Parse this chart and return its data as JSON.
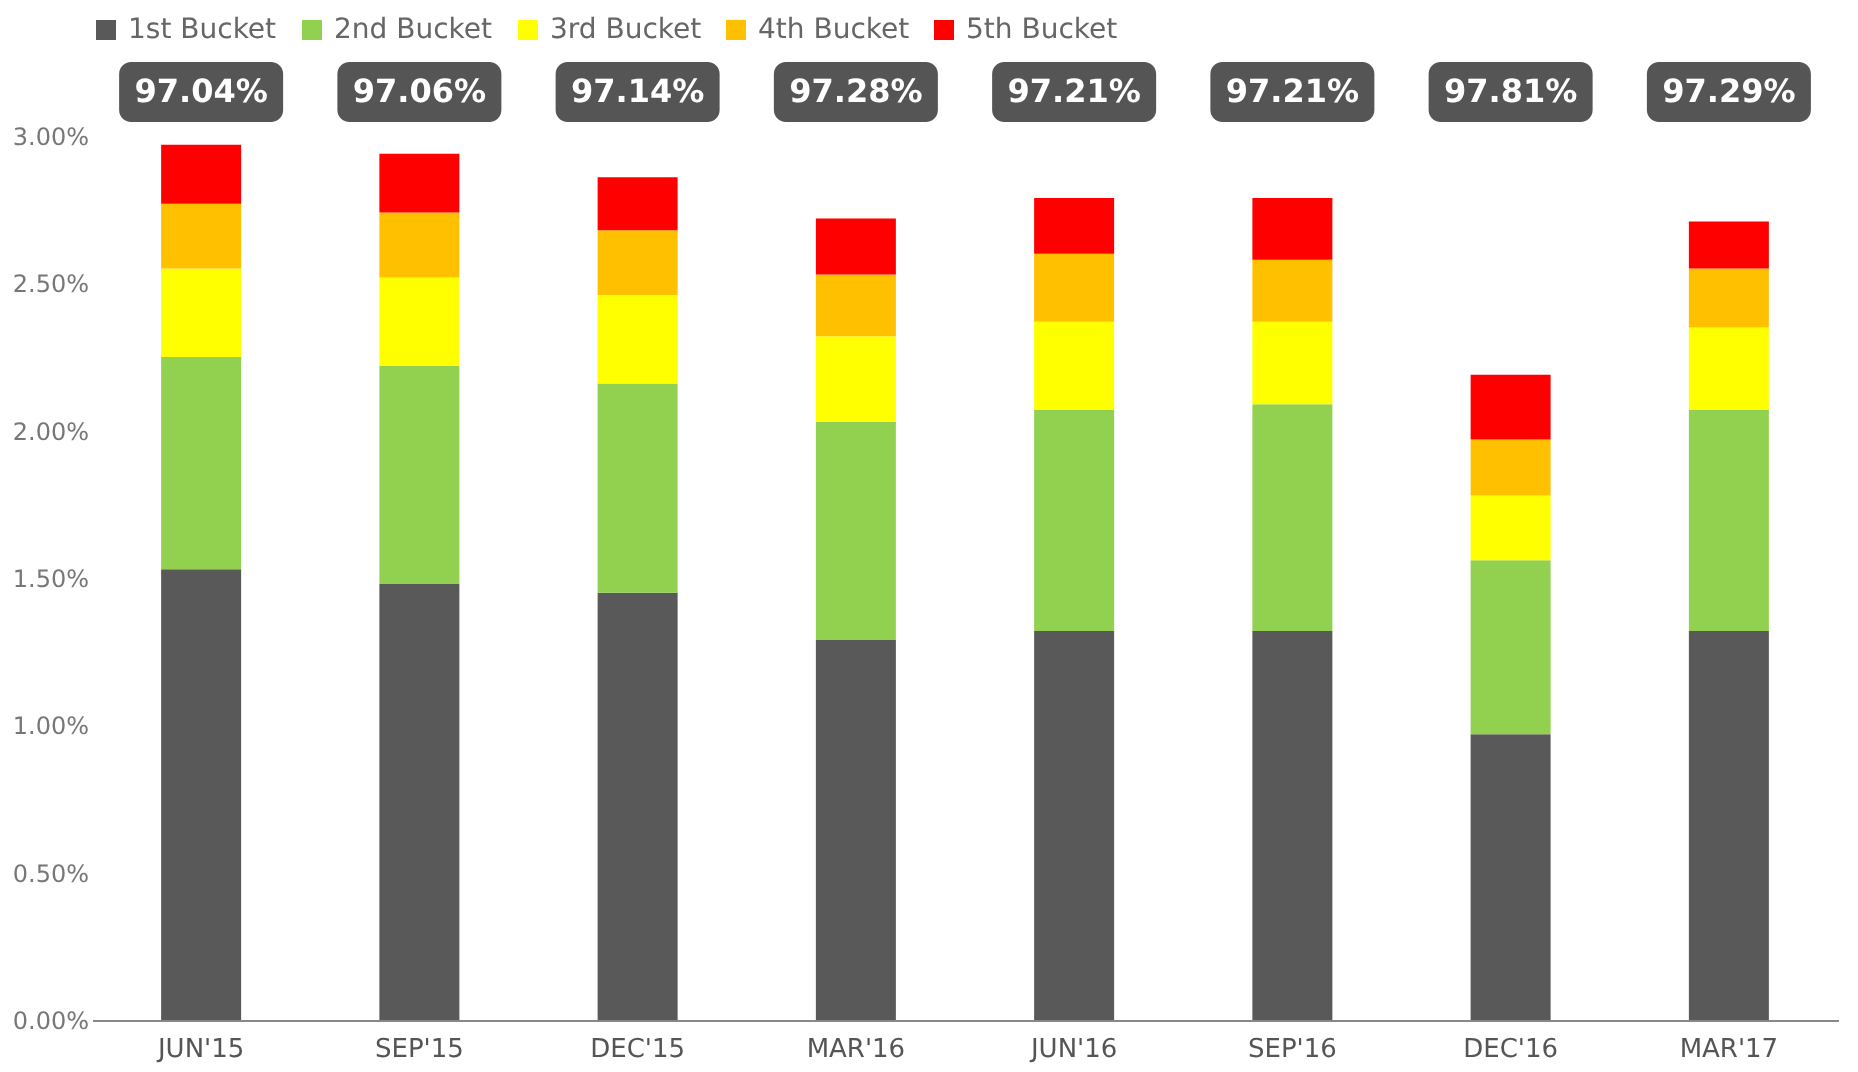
{
  "chart_data": {
    "type": "bar",
    "stacked": true,
    "categories": [
      "JUN'15",
      "SEP'15",
      "DEC'15",
      "MAR'16",
      "JUN'16",
      "SEP'16",
      "DEC'16",
      "MAR'17"
    ],
    "series": [
      {
        "name": "1st Bucket",
        "color": "#595959",
        "values": [
          1.53,
          1.48,
          1.45,
          1.29,
          1.32,
          1.32,
          0.97,
          1.32
        ]
      },
      {
        "name": "2nd Bucket",
        "color": "#92d050",
        "values": [
          0.72,
          0.74,
          0.71,
          0.74,
          0.75,
          0.77,
          0.59,
          0.75
        ]
      },
      {
        "name": "3rd Bucket",
        "color": "#ffff00",
        "values": [
          0.3,
          0.3,
          0.3,
          0.29,
          0.3,
          0.28,
          0.22,
          0.28
        ]
      },
      {
        "name": "4th Bucket",
        "color": "#ffc000",
        "values": [
          0.22,
          0.22,
          0.22,
          0.21,
          0.23,
          0.21,
          0.19,
          0.2
        ]
      },
      {
        "name": "5th Bucket",
        "color": "#ff0000",
        "values": [
          0.2,
          0.2,
          0.18,
          0.19,
          0.19,
          0.21,
          0.22,
          0.16
        ]
      }
    ],
    "ylim": [
      0,
      3
    ],
    "yticks": [
      {
        "value": 0,
        "label": "0.00%"
      },
      {
        "value": 0.5,
        "label": "0.50%"
      },
      {
        "value": 1,
        "label": "1.00%"
      },
      {
        "value": 1.5,
        "label": "1.50%"
      },
      {
        "value": 2,
        "label": "2.00%"
      },
      {
        "value": 2.5,
        "label": "2.50%"
      },
      {
        "value": 3,
        "label": "3.00%"
      }
    ],
    "grid": false,
    "legend": "top",
    "annotations": [
      "97.04%",
      "97.06%",
      "97.14%",
      "97.28%",
      "97.21%",
      "97.21%",
      "97.81%",
      "97.29%"
    ]
  }
}
